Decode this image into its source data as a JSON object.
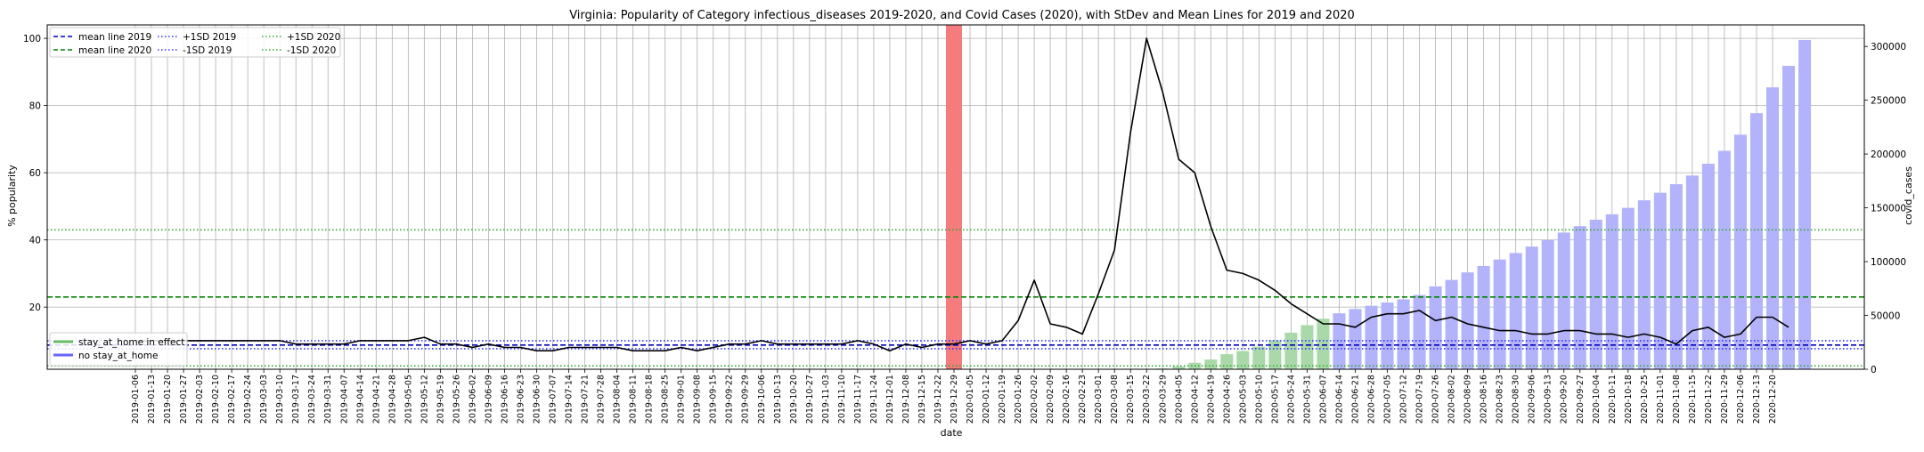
{
  "chart_data": {
    "type": "line",
    "title": "Virginia: Popularity of Category infectious_diseases 2019-2020, and Covid Cases (2020), with StDev and Mean Lines for 2019 and 2020",
    "xlabel": "date",
    "ylabel_left": "% popularity",
    "ylabel_right": "covid_cases",
    "ylim_left": [
      1.5,
      104
    ],
    "ylim_right": [
      0,
      320000
    ],
    "yticks_left": [
      "20",
      "40",
      "60",
      "80",
      "100"
    ],
    "yticks_right": [
      "0",
      "50000",
      "100000",
      "150000",
      "200000",
      "250000",
      "300000"
    ],
    "grid": true,
    "dates": [
      "2019-01-06",
      "2019-01-13",
      "2019-01-20",
      "2019-01-27",
      "2019-02-03",
      "2019-02-10",
      "2019-02-17",
      "2019-02-24",
      "2019-03-03",
      "2019-03-10",
      "2019-03-17",
      "2019-03-24",
      "2019-03-31",
      "2019-04-07",
      "2019-04-14",
      "2019-04-21",
      "2019-04-28",
      "2019-05-05",
      "2019-05-12",
      "2019-05-19",
      "2019-05-26",
      "2019-06-02",
      "2019-06-09",
      "2019-06-16",
      "2019-06-23",
      "2019-06-30",
      "2019-07-07",
      "2019-07-14",
      "2019-07-21",
      "2019-07-28",
      "2019-08-04",
      "2019-08-11",
      "2019-08-18",
      "2019-08-25",
      "2019-09-01",
      "2019-09-08",
      "2019-09-15",
      "2019-09-22",
      "2019-09-29",
      "2019-10-06",
      "2019-10-13",
      "2019-10-20",
      "2019-10-27",
      "2019-11-03",
      "2019-11-10",
      "2019-11-17",
      "2019-11-24",
      "2019-12-01",
      "2019-12-08",
      "2019-12-15",
      "2019-12-22",
      "2019-12-29",
      "2020-01-05",
      "2020-01-12",
      "2020-01-19",
      "2020-01-26",
      "2020-02-02",
      "2020-02-09",
      "2020-02-16",
      "2020-02-23",
      "2020-03-01",
      "2020-03-08",
      "2020-03-15",
      "2020-03-22",
      "2020-03-29",
      "2020-04-05",
      "2020-04-12",
      "2020-04-19",
      "2020-04-26",
      "2020-05-03",
      "2020-05-10",
      "2020-05-17",
      "2020-05-24",
      "2020-05-31",
      "2020-06-07",
      "2020-06-14",
      "2020-06-21",
      "2020-06-28",
      "2020-07-05",
      "2020-07-12",
      "2020-07-19",
      "2020-07-26",
      "2020-08-02",
      "2020-08-09",
      "2020-08-16",
      "2020-08-23",
      "2020-08-30",
      "2020-09-06",
      "2020-09-13",
      "2020-09-20",
      "2020-09-27",
      "2020-10-04",
      "2020-10-11",
      "2020-10-18",
      "2020-10-25",
      "2020-11-01",
      "2020-11-08",
      "2020-11-15",
      "2020-11-22",
      "2020-11-29",
      "2020-12-06",
      "2020-12-13",
      "2020-12-20"
    ],
    "popularity": [
      10,
      10,
      10,
      10,
      10,
      10,
      10,
      10,
      10,
      10,
      9,
      9,
      9,
      9,
      10,
      10,
      10,
      10,
      11,
      9,
      9,
      8,
      9,
      8,
      8,
      7,
      7,
      8,
      8,
      8,
      8,
      7,
      7,
      7,
      8,
      7,
      8,
      9,
      9,
      10,
      9,
      9,
      9,
      9,
      9,
      10,
      9,
      7,
      9,
      8,
      9,
      9,
      10,
      9,
      10,
      16,
      28,
      15,
      14,
      12,
      24,
      37,
      72,
      100,
      84,
      64,
      60,
      44,
      31,
      30,
      28,
      25,
      21,
      18,
      15,
      15,
      14,
      17,
      18,
      18,
      19,
      16,
      17,
      15,
      14,
      13,
      13,
      12,
      12,
      13,
      13,
      12,
      12,
      11,
      12,
      11,
      9,
      13,
      14,
      11,
      12,
      17,
      17,
      14
    ],
    "covid_cases": [
      0,
      0,
      0,
      0,
      0,
      0,
      0,
      0,
      0,
      0,
      0,
      0,
      0,
      0,
      0,
      0,
      0,
      0,
      0,
      0,
      0,
      0,
      0,
      0,
      0,
      0,
      0,
      0,
      0,
      0,
      0,
      0,
      0,
      0,
      0,
      0,
      0,
      0,
      0,
      0,
      0,
      0,
      0,
      0,
      0,
      0,
      0,
      0,
      0,
      0,
      0,
      0,
      0,
      0,
      0,
      0,
      0,
      0,
      0,
      0,
      0,
      0,
      0,
      100,
      700,
      2500,
      6000,
      9000,
      14000,
      17000,
      21000,
      27000,
      34000,
      41000,
      47000,
      52000,
      56000,
      59000,
      62000,
      65000,
      69000,
      77000,
      83000,
      90000,
      96000,
      102000,
      108000,
      114000,
      120000,
      127000,
      133000,
      139000,
      144000,
      150000,
      157000,
      164000,
      172000,
      180000,
      191000,
      203000,
      218000,
      238000,
      262000,
      282000,
      306000
    ],
    "stay_at_home_start": "2020-03-29",
    "stay_at_home_end": "2020-06-07",
    "highlight_date": "2019-12-29",
    "reference_lines": [
      {
        "label": "mean line 2019",
        "value": 8.7,
        "color": "#0000bb",
        "style": "dashed"
      },
      {
        "label": "mean line 2020",
        "value": 23.0,
        "color": "#008000",
        "style": "dashed"
      },
      {
        "label": "+1SD 2019",
        "value": 10.0,
        "color": "#3333ff",
        "style": "dotted"
      },
      {
        "label": "-1SD 2019",
        "value": 7.6,
        "color": "#3333ff",
        "style": "dotted"
      },
      {
        "label": "+1SD 2020",
        "value": 43.0,
        "color": "#33aa33",
        "style": "dotted"
      },
      {
        "label": "-1SD 2020",
        "value": 2.5,
        "color": "#33aa33",
        "style": "dotted"
      }
    ],
    "legend_lines": [
      {
        "label": "mean line 2019",
        "color": "#0000bb",
        "style": "dashed"
      },
      {
        "label": "mean line 2020",
        "color": "#008000",
        "style": "dashed"
      },
      {
        "label": "+1SD 2019",
        "color": "#3333ff",
        "style": "dotted"
      },
      {
        "label": "-1SD 2019",
        "color": "#3333ff",
        "style": "dotted"
      },
      {
        "label": "+1SD 2020",
        "color": "#33aa33",
        "style": "dotted"
      },
      {
        "label": "-1SD 2020",
        "color": "#33aa33",
        "style": "dotted"
      }
    ],
    "legend_bars": [
      {
        "label": "stay_at_home in effect",
        "color": "#66bb66"
      },
      {
        "label": "no stay_at_home",
        "color": "#6666ff"
      }
    ],
    "legend_position": "upper-left",
    "colors": {
      "popularity_line": "#000000",
      "bar_stay_at_home": "#a9d9a9",
      "bar_no_stay_at_home": "#b3b3fb",
      "highlight": "#f47c7c",
      "grid": "#b0b0b0"
    }
  }
}
